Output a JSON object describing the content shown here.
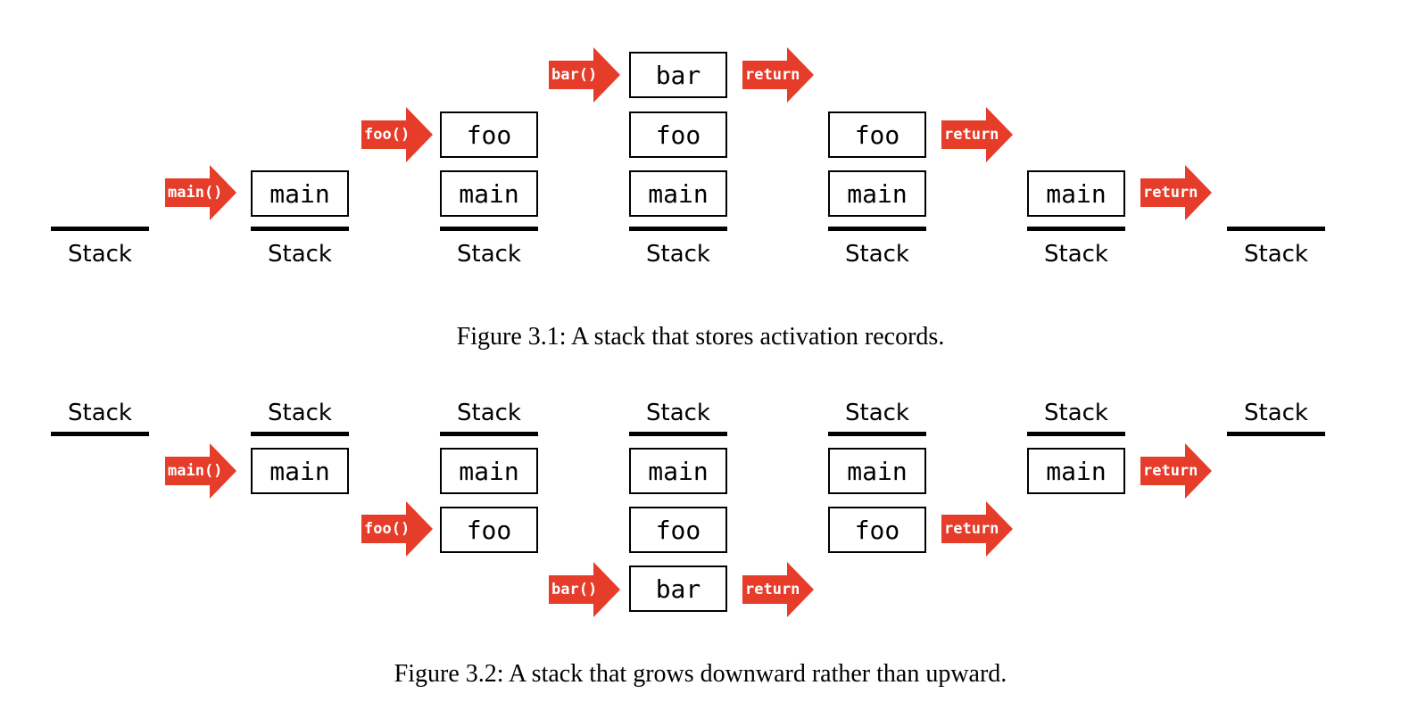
{
  "colors": {
    "arrow": "#e63c2a",
    "ink": "#000000"
  },
  "figure1": {
    "caption": "Figure 3.1: A stack that stores activation records.",
    "stack_label": "Stack",
    "columns": [
      {
        "frames": []
      },
      {
        "frames": [
          "main"
        ]
      },
      {
        "frames": [
          "main",
          "foo"
        ]
      },
      {
        "frames": [
          "main",
          "foo",
          "bar"
        ]
      },
      {
        "frames": [
          "main",
          "foo"
        ]
      },
      {
        "frames": [
          "main"
        ]
      },
      {
        "frames": []
      }
    ],
    "arrows": [
      {
        "label": "main()"
      },
      {
        "label": "foo()"
      },
      {
        "label": "bar()"
      },
      {
        "label": "return"
      },
      {
        "label": "return"
      },
      {
        "label": "return"
      }
    ]
  },
  "figure2": {
    "caption": "Figure 3.2: A stack that grows downward rather than upward.",
    "stack_label": "Stack",
    "columns": [
      {
        "frames": []
      },
      {
        "frames": [
          "main"
        ]
      },
      {
        "frames": [
          "main",
          "foo"
        ]
      },
      {
        "frames": [
          "main",
          "foo",
          "bar"
        ]
      },
      {
        "frames": [
          "main",
          "foo"
        ]
      },
      {
        "frames": [
          "main"
        ]
      },
      {
        "frames": []
      }
    ],
    "arrows": [
      {
        "label": "main()"
      },
      {
        "label": "foo()"
      },
      {
        "label": "bar()"
      },
      {
        "label": "return"
      },
      {
        "label": "return"
      },
      {
        "label": "return"
      }
    ]
  }
}
